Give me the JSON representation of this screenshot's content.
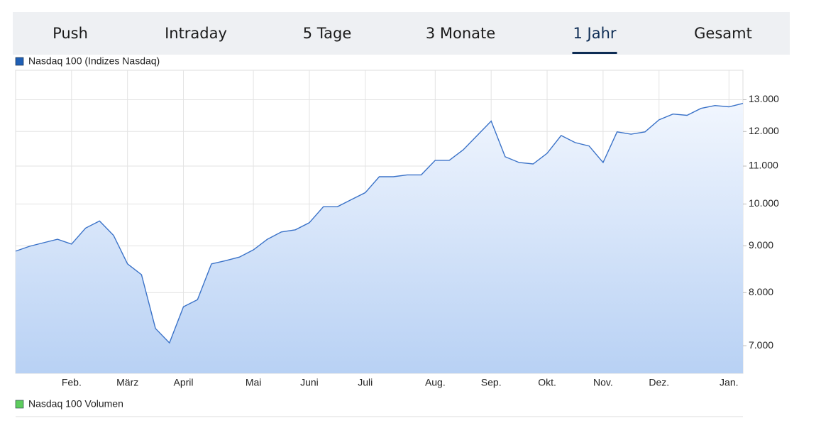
{
  "tabs": [
    {
      "label": "Push"
    },
    {
      "label": "Intraday"
    },
    {
      "label": "5 Tage"
    },
    {
      "label": "3 Monate"
    },
    {
      "label": "1 Jahr",
      "selected": true
    },
    {
      "label": "Gesamt"
    }
  ],
  "volume_legend": "Nasdaq 100 Volumen",
  "chart_data": {
    "type": "area",
    "log_scale": true,
    "grid": true,
    "categories": [
      null,
      null,
      null,
      null,
      "Feb.",
      null,
      null,
      null,
      "März",
      null,
      null,
      null,
      "April",
      null,
      null,
      null,
      null,
      "Mai",
      null,
      null,
      null,
      "Juni",
      null,
      null,
      null,
      "Juli",
      null,
      null,
      null,
      null,
      "Aug.",
      null,
      null,
      null,
      "Sep.",
      null,
      null,
      null,
      "Okt.",
      null,
      null,
      null,
      "Nov.",
      null,
      null,
      null,
      "Dez.",
      null,
      null,
      null,
      null,
      "Jan.",
      null
    ],
    "series": [
      {
        "name": "Nasdaq 100 (Indizes Nasdaq)",
        "color": "#3a72c8",
        "values": [
          8880,
          8990,
          9070,
          9150,
          9040,
          9410,
          9580,
          9240,
          8600,
          8370,
          7310,
          7050,
          7720,
          7860,
          8600,
          8670,
          8750,
          8910,
          9150,
          9320,
          9370,
          9540,
          9930,
          9930,
          10110,
          10290,
          10710,
          10710,
          10760,
          10760,
          11160,
          11160,
          11460,
          11880,
          12320,
          11260,
          11100,
          11060,
          11360,
          11880,
          11670,
          11570,
          11100,
          11990,
          11920,
          11990,
          12360,
          12540,
          12500,
          12720,
          12810,
          12770,
          12880
        ]
      }
    ],
    "ylim": [
      6530,
      14000
    ],
    "yticks": [
      {
        "value": 7000,
        "label": "7.000"
      },
      {
        "value": 8000,
        "label": "8.000"
      },
      {
        "value": 9000,
        "label": "9.000"
      },
      {
        "value": 10000,
        "label": "10.000"
      },
      {
        "value": 11000,
        "label": "11.000"
      },
      {
        "value": 12000,
        "label": "12.000"
      },
      {
        "value": 13000,
        "label": "13.000"
      }
    ]
  }
}
